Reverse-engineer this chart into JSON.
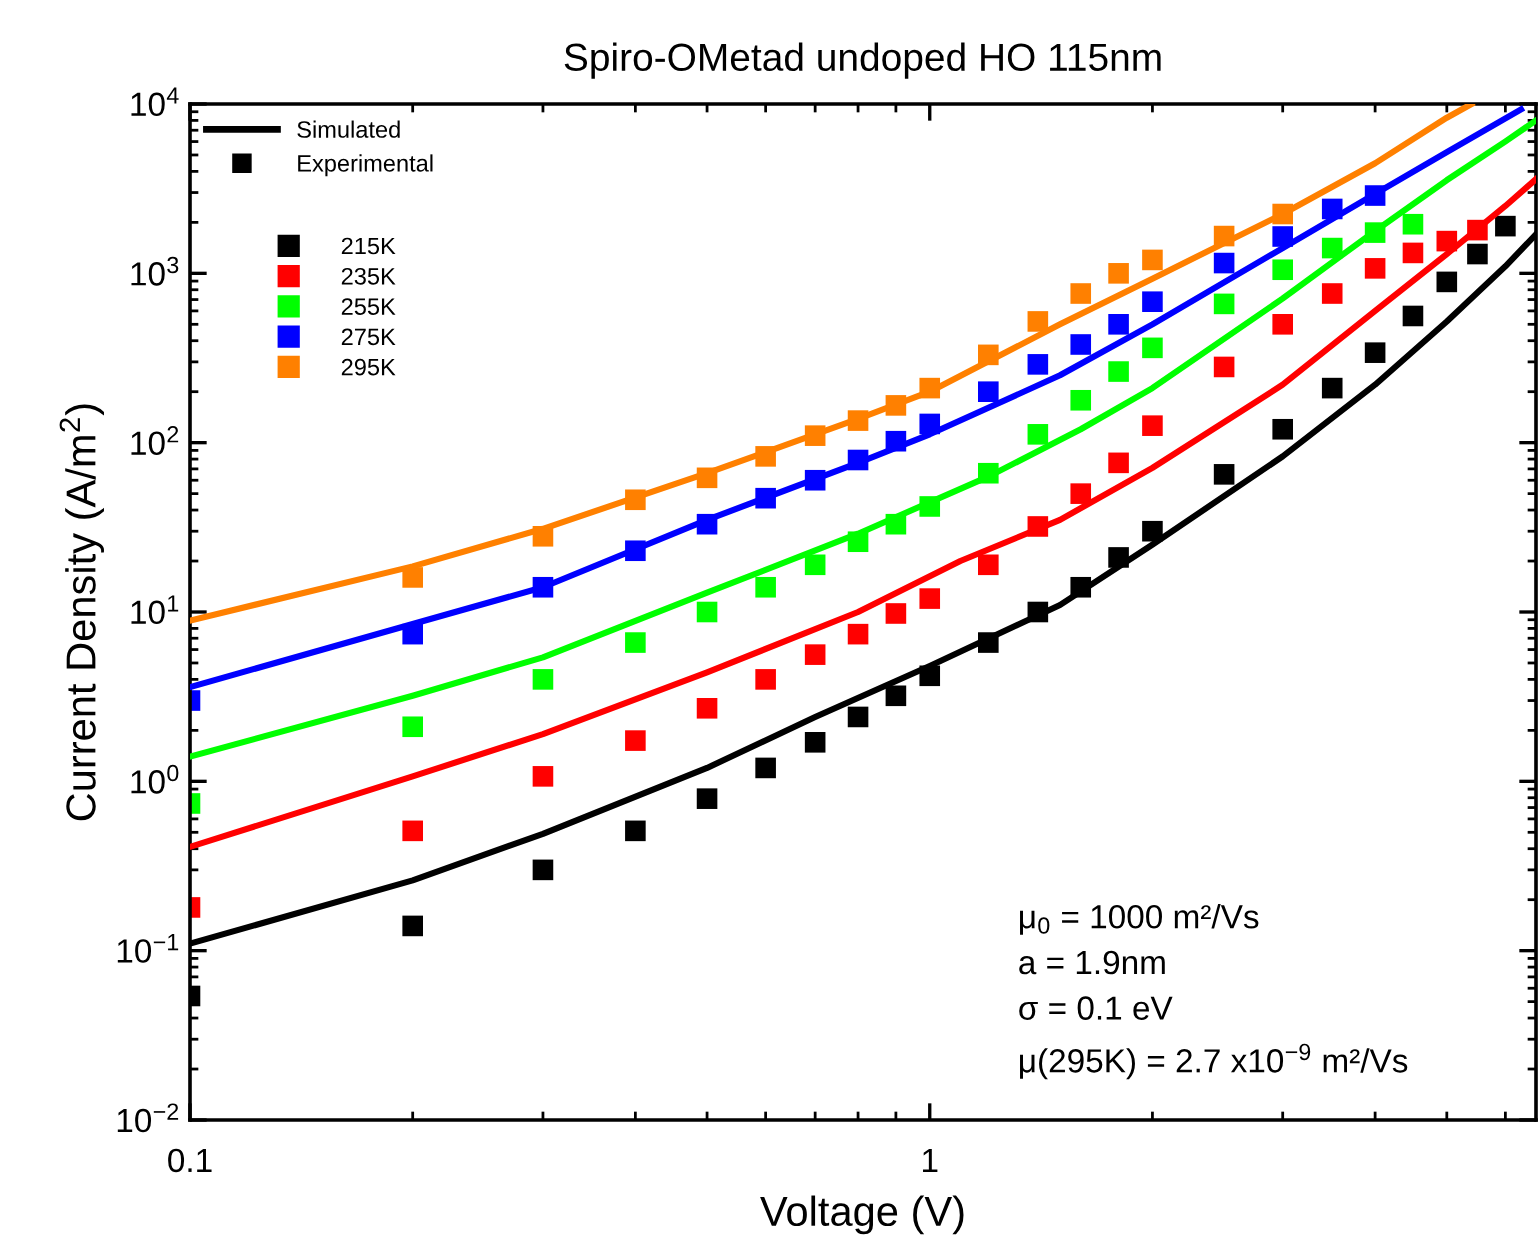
{
  "chart_data": {
    "type": "line",
    "title": "Spiro-OMetad undoped HO 115nm",
    "xlabel": "Voltage (V)",
    "ylabel": "Current Density (A/m$^{2}$)",
    "log": "xy",
    "xlim": [
      0.1,
      6.6
    ],
    "ylim": [
      0.01,
      10000
    ],
    "xticks": [
      {
        "value": 0.1,
        "label": "0.1"
      },
      {
        "value": 1,
        "label": "1"
      }
    ],
    "yticks": [
      {
        "value": 0.01,
        "label": "10$^{−2}$"
      },
      {
        "value": 0.1,
        "label": "10$^{−1}$"
      },
      {
        "value": 1,
        "label": "10$^{0}$"
      },
      {
        "value": 10,
        "label": "10$^{1}$"
      },
      {
        "value": 100,
        "label": "10$^{2}$"
      },
      {
        "value": 1000,
        "label": "10$^{3}$"
      },
      {
        "value": 10000,
        "label": "10$^{4}$"
      }
    ],
    "grid": false,
    "legend": "top left",
    "annotations": [
      "Simulated",
      "Experimental",
      "μ$_{0}$ = 1000 m²/Vs\na = 1.9nm\nσ = 0.1 eV\nμ(295K) = 2.7 x10$^{−9}$ m²/Vs"
    ],
    "series": [
      {
        "marker": "none",
        "color": "#000000",
        "x": [
          0.1,
          0.2,
          0.3,
          0.5,
          0.7,
          1.0,
          1.5,
          2,
          3,
          4,
          5,
          6,
          6.6
        ],
        "values": [
          0.11,
          0.26,
          0.49,
          1.2,
          2.4,
          4.8,
          11,
          25,
          83,
          220,
          520,
          1100,
          1700
        ]
      },
      {
        "marker": "none",
        "color": "#ff0000",
        "x": [
          0.1,
          0.2,
          0.3,
          0.5,
          0.8,
          1.1,
          1.5,
          2,
          3,
          4,
          5,
          6,
          6.6
        ],
        "values": [
          0.41,
          1.07,
          1.9,
          4.4,
          10,
          20,
          35,
          71,
          220,
          600,
          1300,
          2500,
          3600
        ]
      },
      {
        "marker": "none",
        "color": "#00ff00",
        "x": [
          0.1,
          0.2,
          0.3,
          0.5,
          0.8,
          1.2,
          1.6,
          2,
          3,
          4,
          5,
          6,
          6.6
        ],
        "values": [
          1.4,
          3.2,
          5.4,
          13,
          29,
          63,
          120,
          210,
          710,
          1780,
          3550,
          6000,
          8000
        ]
      },
      {
        "marker": "none",
        "color": "#0000ff",
        "x": [
          0.1,
          0.2,
          0.3,
          0.5,
          0.8,
          1.0,
          1.5,
          2,
          3,
          4,
          5,
          6.3
        ],
        "values": [
          3.6,
          8.5,
          14,
          35,
          76,
          112,
          250,
          500,
          1410,
          2950,
          5200,
          9300
        ]
      },
      {
        "marker": "none",
        "color": "#ff8000",
        "x": [
          0.1,
          0.2,
          0.3,
          0.5,
          0.8,
          1.0,
          1.5,
          2,
          3,
          4,
          5,
          5.4
        ],
        "values": [
          8.9,
          18.6,
          31,
          66,
          138,
          200,
          500,
          930,
          2240,
          4470,
          8300,
          10000
        ]
      },
      {
        "type": "scatter",
        "marker": "square",
        "name": "215K",
        "color": "#000000",
        "x": [
          0.1,
          0.2,
          0.3,
          0.4,
          0.5,
          0.6,
          0.7,
          0.8,
          0.9,
          1.0,
          1.2,
          1.4,
          1.6,
          1.8,
          2.0,
          2.5,
          3.0,
          3.5,
          4.0,
          4.5,
          5.0,
          5.5,
          6.0
        ],
        "values": [
          0.054,
          0.14,
          0.3,
          0.51,
          0.79,
          1.2,
          1.7,
          2.4,
          3.2,
          4.2,
          6.6,
          10,
          14,
          21,
          30,
          65,
          120,
          210,
          340,
          560,
          890,
          1300,
          1900
        ]
      },
      {
        "type": "scatter",
        "marker": "square",
        "name": "235K",
        "color": "#ff0000",
        "x": [
          0.1,
          0.2,
          0.3,
          0.4,
          0.5,
          0.6,
          0.7,
          0.8,
          0.9,
          1.0,
          1.2,
          1.4,
          1.6,
          1.8,
          2.0,
          2.5,
          3.0,
          3.5,
          4.0,
          4.5,
          5.0,
          5.5
        ],
        "values": [
          0.18,
          0.51,
          1.07,
          1.74,
          2.7,
          4.0,
          5.6,
          7.4,
          9.8,
          12,
          19,
          32,
          50,
          76,
          126,
          280,
          500,
          760,
          1070,
          1320,
          1550,
          1800
        ]
      },
      {
        "type": "scatter",
        "marker": "square",
        "name": "255K",
        "color": "#00ff00",
        "x": [
          0.1,
          0.2,
          0.3,
          0.4,
          0.5,
          0.6,
          0.7,
          0.8,
          0.9,
          1.0,
          1.2,
          1.4,
          1.6,
          1.8,
          2.0,
          2.5,
          3.0,
          3.5,
          4.0,
          4.5
        ],
        "values": [
          0.74,
          2.1,
          4.0,
          6.6,
          10,
          14,
          19,
          26,
          33,
          42,
          66,
          112,
          178,
          263,
          363,
          660,
          1050,
          1410,
          1740,
          1950
        ]
      },
      {
        "type": "scatter",
        "marker": "square",
        "name": "275K",
        "color": "#0000ff",
        "x": [
          0.1,
          0.2,
          0.3,
          0.4,
          0.5,
          0.6,
          0.7,
          0.8,
          0.9,
          1.0,
          1.2,
          1.4,
          1.6,
          1.8,
          2.0,
          2.5,
          3.0,
          3.5,
          4.0
        ],
        "values": [
          3.0,
          7.4,
          14,
          23,
          33,
          47,
          60,
          79,
          102,
          129,
          200,
          290,
          380,
          500,
          680,
          1150,
          1650,
          2400,
          2880
        ]
      },
      {
        "type": "scatter",
        "marker": "square",
        "name": "295K",
        "color": "#ff8000",
        "x": [
          0.2,
          0.3,
          0.4,
          0.5,
          0.6,
          0.7,
          0.8,
          0.9,
          1.0,
          1.2,
          1.4,
          1.6,
          1.8,
          2.0,
          2.5,
          3.0
        ],
        "values": [
          16,
          28,
          46,
          62,
          83,
          110,
          135,
          166,
          210,
          330,
          520,
          760,
          1000,
          1200,
          1660,
          2240
        ]
      }
    ]
  }
}
